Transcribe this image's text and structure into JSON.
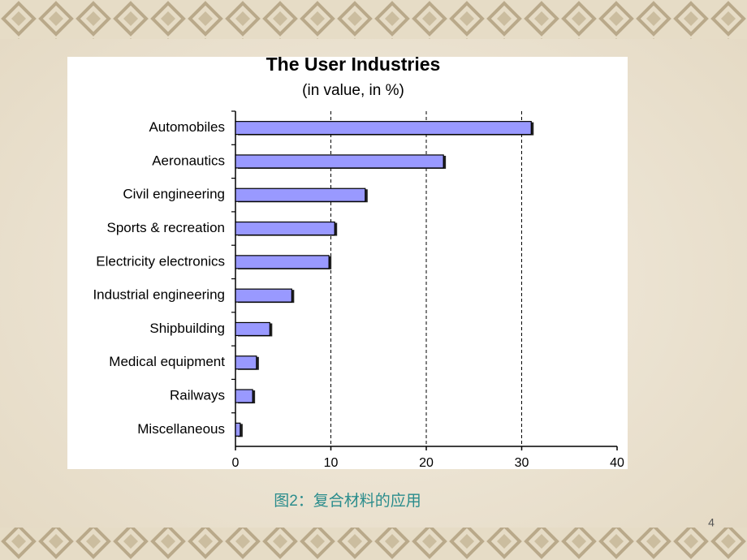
{
  "chart_data": {
    "type": "barh",
    "title": "The User Industries",
    "subtitle": "(in value, in %)",
    "categories": [
      "Automobiles",
      "Aeronautics",
      "Civil engineering",
      "Sports & recreation",
      "Electricity electronics",
      "Industrial engineering",
      "Shipbuilding",
      "Medical equipment",
      "Railways",
      "Miscellaneous"
    ],
    "values": [
      31,
      21.8,
      13.6,
      10.4,
      9.8,
      5.9,
      3.6,
      2.2,
      1.8,
      0.5
    ],
    "color": "#9999ff",
    "xlim": [
      0,
      40
    ],
    "xticks": [
      0,
      10,
      20,
      30,
      40
    ],
    "grid": true
  },
  "caption": "图2：复合材料的应用",
  "page_number": "4"
}
